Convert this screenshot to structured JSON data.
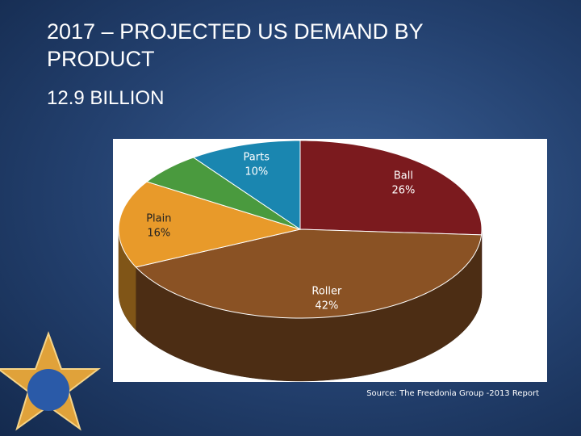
{
  "chart_data": {
    "type": "pie3d",
    "title": "2017 – PROJECTED US DEMAND BY PRODUCT",
    "subtitle": "12.9 BILLION",
    "categories": [
      "Ball",
      "Roller",
      "Plain",
      null,
      "Parts"
    ],
    "values": [
      26,
      42,
      16,
      6,
      10
    ],
    "value_labels": [
      "26%",
      "42%",
      "16%",
      null,
      "10%"
    ],
    "colors": [
      "#7b1a1e",
      "#8a5224",
      "#e89a2a",
      "#4a9a3e",
      "#1a86b0"
    ],
    "source": "Source: The Freedonia Group -2013 Report"
  }
}
